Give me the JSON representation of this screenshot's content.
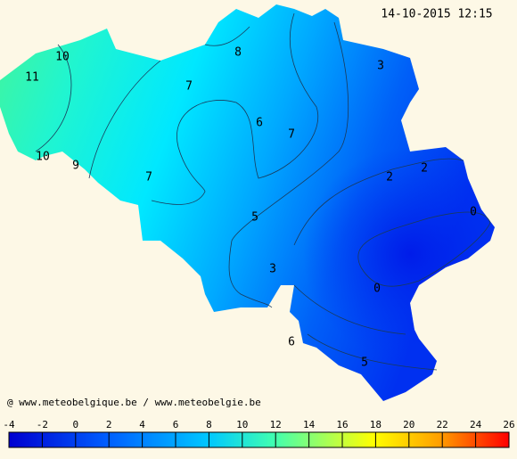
{
  "timestamp": "14-10-2015 12:15",
  "credit": "@ www.meteobelgique.be / www.meteobelgie.be",
  "contour_labels": [
    10,
    11,
    8,
    3,
    7,
    6,
    7,
    10,
    9,
    7,
    2,
    2,
    0,
    5,
    3,
    0,
    6,
    5
  ],
  "colorbar": {
    "ticks": [
      -4,
      -2,
      0,
      2,
      4,
      6,
      8,
      10,
      12,
      14,
      16,
      18,
      20,
      22,
      24,
      26
    ]
  }
}
